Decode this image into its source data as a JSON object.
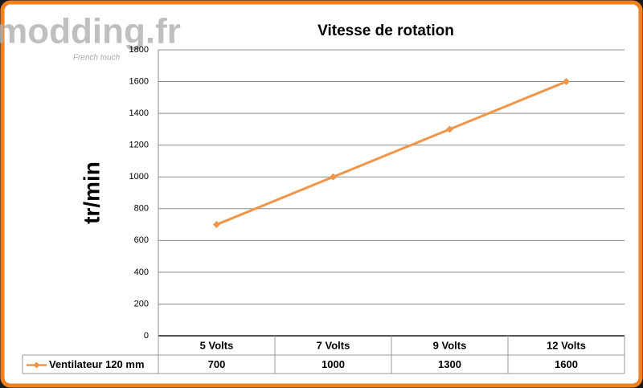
{
  "chart_data": {
    "type": "line",
    "title": "Vitesse de rotation",
    "y_label": "tr/min",
    "watermark": "modding.fr",
    "watermark_tagline": "French touch",
    "categories": [
      "5 Volts",
      "7 Volts",
      "9 Volts",
      "12 Volts"
    ],
    "series": [
      {
        "name": "Ventilateur 120 mm",
        "color": "#f0954a",
        "values": [
          700,
          1000,
          1300,
          1600
        ]
      }
    ],
    "ylim": [
      0,
      1800
    ],
    "yticks": [
      0,
      200,
      400,
      600,
      800,
      1000,
      1200,
      1400,
      1600,
      1800
    ],
    "grid": true,
    "data_table": true
  }
}
